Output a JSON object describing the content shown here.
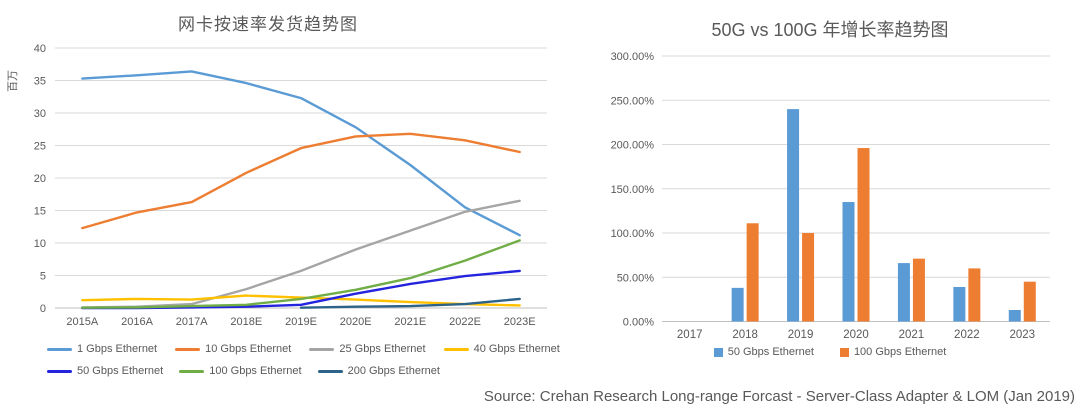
{
  "source_note": "Source: Crehan Research Long-range Forcast - Server-Class Adapter & LOM (Jan 2019)",
  "colors": {
    "grid": "#D9D9D9",
    "axis": "#BFBFBF",
    "tick_text": "#595959"
  },
  "chart_data": [
    {
      "type": "line",
      "title": "网卡按速率发货趋势图",
      "ylabel": "百万",
      "xlabel": "",
      "categories": [
        "2015A",
        "2016A",
        "2017A",
        "2018E",
        "2019E",
        "2020E",
        "2021E",
        "2022E",
        "2023E"
      ],
      "ylim": [
        0,
        40
      ],
      "ytick_step": 5,
      "grid": true,
      "legend_position": "bottom",
      "series": [
        {
          "name": "1 Gbps Ethernet",
          "color": "#5B9BD5",
          "values": [
            35.3,
            35.8,
            36.4,
            34.6,
            32.3,
            27.8,
            22.0,
            15.5,
            11.2
          ]
        },
        {
          "name": "10 Gbps Ethernet",
          "color": "#ED7D31",
          "values": [
            12.3,
            14.7,
            16.3,
            20.8,
            24.6,
            26.4,
            26.8,
            25.8,
            24.0
          ]
        },
        {
          "name": "25 Gbps Ethernet",
          "color": "#A5A5A5",
          "values": [
            0.1,
            0.2,
            0.6,
            2.9,
            5.7,
            9.0,
            11.9,
            14.8,
            16.5
          ]
        },
        {
          "name": "40 Gbps Ethernet",
          "color": "#FFC000",
          "values": [
            1.2,
            1.4,
            1.3,
            1.9,
            1.6,
            1.3,
            0.9,
            0.6,
            0.4
          ]
        },
        {
          "name": "50 Gbps Ethernet",
          "color": "#2424DE",
          "values": [
            0.0,
            0.0,
            0.1,
            0.2,
            0.5,
            2.2,
            3.7,
            4.9,
            5.7
          ]
        },
        {
          "name": "100 Gbps Ethernet",
          "color": "#70AD47",
          "values": [
            0.05,
            0.1,
            0.3,
            0.5,
            1.4,
            2.8,
            4.6,
            7.3,
            10.4
          ]
        },
        {
          "name": "200 Gbps Ethernet",
          "color": "#2E6389",
          "values": [
            null,
            null,
            null,
            null,
            0.05,
            0.2,
            0.3,
            0.6,
            1.4
          ]
        }
      ]
    },
    {
      "type": "bar",
      "title": "50G vs 100G 年增长率趋势图",
      "xlabel": "",
      "ylabel": "",
      "categories": [
        "2017",
        "2018",
        "2019",
        "2020",
        "2021",
        "2022",
        "2023"
      ],
      "ylim": [
        0,
        300
      ],
      "ytick_step": 50,
      "ytick_format": "percent2",
      "grid": true,
      "legend_position": "bottom",
      "series": [
        {
          "name": "50 Gbps Ethernet",
          "color": "#5B9BD5",
          "values": [
            0,
            38,
            240,
            135,
            66,
            39,
            13
          ]
        },
        {
          "name": "100 Gbps Ethernet",
          "color": "#ED7D31",
          "values": [
            0,
            111,
            100,
            196,
            71,
            60,
            45
          ]
        }
      ]
    }
  ]
}
